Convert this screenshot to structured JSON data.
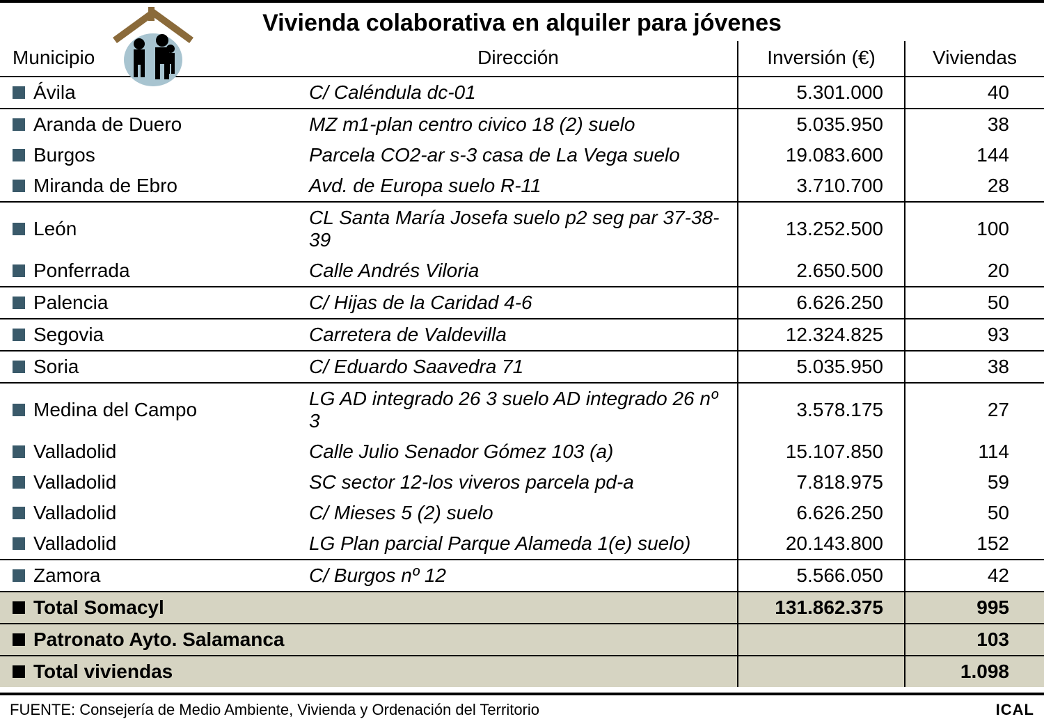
{
  "title": "Vivienda colaborativa en alquiler para jóvenes",
  "columns": {
    "municipio": "Municipio",
    "direccion": "Dirección",
    "inversion": "Inversión (€)",
    "viviendas": "Viviendas"
  },
  "markers": {
    "normal_color": "#3a5a6a",
    "summary_color": "#000000"
  },
  "background": {
    "page": "#ffffff",
    "summary_row": "#d6d4c2"
  },
  "rows": [
    {
      "municipio": "Ávila",
      "direccion": "C/ Caléndula dc-01",
      "inversion": "5.301.000",
      "viviendas": "40",
      "group_start": true
    },
    {
      "municipio": "Aranda de Duero",
      "direccion": "MZ m1-plan centro civico 18 (2) suelo",
      "inversion": "5.035.950",
      "viviendas": "38",
      "group_start": true
    },
    {
      "municipio": "Burgos",
      "direccion": "Parcela CO2-ar s-3 casa de La Vega suelo",
      "inversion": "19.083.600",
      "viviendas": "144",
      "group_start": false
    },
    {
      "municipio": "Miranda de Ebro",
      "direccion": "Avd. de Europa suelo R-11",
      "inversion": "3.710.700",
      "viviendas": "28",
      "group_start": false
    },
    {
      "municipio": "León",
      "direccion": "CL Santa María Josefa suelo p2 seg par 37-38-39",
      "inversion": "13.252.500",
      "viviendas": "100",
      "group_start": true
    },
    {
      "municipio": "Ponferrada",
      "direccion": "Calle Andrés Viloria",
      "inversion": "2.650.500",
      "viviendas": "20",
      "group_start": false
    },
    {
      "municipio": "Palencia",
      "direccion": "C/ Hijas de la Caridad 4-6",
      "inversion": "6.626.250",
      "viviendas": "50",
      "group_start": true
    },
    {
      "municipio": "Segovia",
      "direccion": "Carretera de Valdevilla",
      "inversion": "12.324.825",
      "viviendas": "93",
      "group_start": true
    },
    {
      "municipio": "Soria",
      "direccion": "C/ Eduardo Saavedra 71",
      "inversion": "5.035.950",
      "viviendas": "38",
      "group_start": true
    },
    {
      "municipio": "Medina del Campo",
      "direccion": "LG AD integrado 26 3 suelo AD integrado 26 nº 3",
      "inversion": "3.578.175",
      "viviendas": "27",
      "group_start": true
    },
    {
      "municipio": "Valladolid",
      "direccion": "Calle Julio Senador Gómez 103 (a)",
      "inversion": "15.107.850",
      "viviendas": "114",
      "group_start": false
    },
    {
      "municipio": "Valladolid",
      "direccion": "SC sector 12-los viveros parcela pd-a",
      "inversion": "7.818.975",
      "viviendas": "59",
      "group_start": false
    },
    {
      "municipio": "Valladolid",
      "direccion": "C/ Mieses 5 (2) suelo",
      "inversion": "6.626.250",
      "viviendas": "50",
      "group_start": false
    },
    {
      "municipio": "Valladolid",
      "direccion": "LG Plan parcial Parque Alameda 1(e) suelo)",
      "inversion": "20.143.800",
      "viviendas": "152",
      "group_start": false
    },
    {
      "municipio": "Zamora",
      "direccion": "C/ Burgos nº 12",
      "inversion": "5.566.050",
      "viviendas": "42",
      "group_start": true
    }
  ],
  "summary": [
    {
      "label": "Total Somacyl",
      "inversion": "131.862.375",
      "viviendas": "995"
    },
    {
      "label": "Patronato Ayto. Salamanca",
      "inversion": "",
      "viviendas": "103"
    },
    {
      "label": "Total viviendas",
      "inversion": "",
      "viviendas": "1.098"
    }
  ],
  "footer": {
    "source": "FUENTE: Consejería de Medio Ambiente, Vivienda y Ordenación del Territorio",
    "brand": "ICAL"
  },
  "icon": {
    "name": "house-people-icon",
    "roof_color": "#8a6a3a",
    "circle_color": "#a8c4d0",
    "people_color": "#000000"
  }
}
